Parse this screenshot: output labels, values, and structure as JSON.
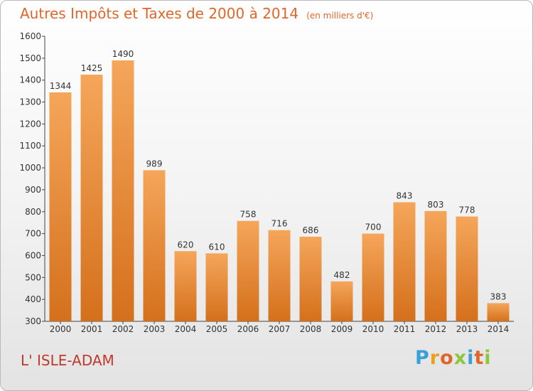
{
  "chart_data": {
    "type": "bar",
    "title": "Autres Impôts et Taxes de 2000 à 2014",
    "subtitle": "(en milliers d'€)",
    "categories": [
      "2000",
      "2001",
      "2002",
      "2003",
      "2004",
      "2005",
      "2006",
      "2007",
      "2008",
      "2009",
      "2010",
      "2011",
      "2012",
      "2013",
      "2014"
    ],
    "values": [
      1344,
      1425,
      1490,
      989,
      620,
      610,
      758,
      716,
      686,
      482,
      700,
      843,
      803,
      778,
      383
    ],
    "ylim": [
      300,
      1600
    ],
    "yticks": [
      300,
      400,
      500,
      600,
      700,
      800,
      900,
      1000,
      1100,
      1200,
      1300,
      1400,
      1500,
      1600
    ],
    "grid": false,
    "data_labels": true,
    "colors": {
      "bar_top": "#f5a65a",
      "bar_bottom": "#d4701c",
      "title": "#e0672b",
      "place": "#c0392b"
    }
  },
  "place_name": "L' ISLE-ADAM",
  "logo": {
    "letters": [
      "P",
      "r",
      "o",
      "x",
      "i",
      "t",
      "i"
    ],
    "colors": [
      "#3aa0d8",
      "#e8a21e",
      "#e0672b",
      "#8dc63f",
      "#3aa0d8",
      "#e0672b",
      "#8dc63f"
    ]
  }
}
